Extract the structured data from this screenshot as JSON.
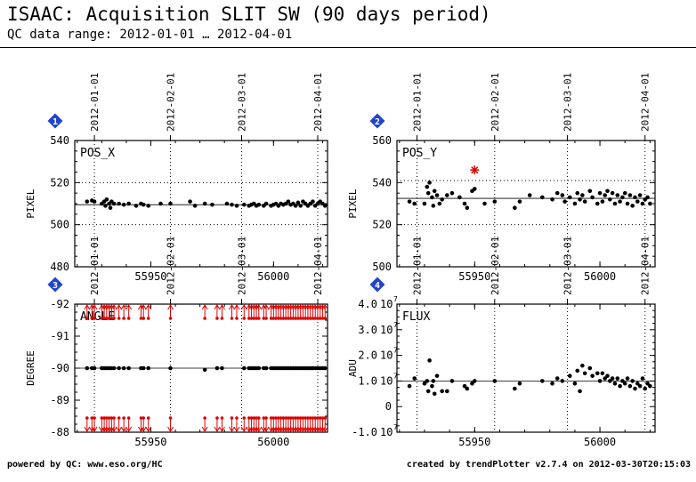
{
  "header": {
    "title": "ISAAC: Acquisition SLIT SW (90 days period)",
    "subtitle": "QC data range: 2012-01-01 … 2012-04-01"
  },
  "footer": {
    "left": "powered by QC: www.eso.org/HC",
    "right": "created by trendPlotter v2.7.4 on 2012-03-30T20:15:03"
  },
  "colors": {
    "axis": "#000000",
    "grid": "#000000",
    "points": "#000000",
    "outlier": "#dd0000",
    "badge": "#2244cc"
  },
  "chart_data": [
    {
      "type": "scatter",
      "badge": "1",
      "label": "POS_X",
      "ylabel": "PIXEL",
      "xlim": [
        55919,
        56022
      ],
      "ylim": [
        480,
        540
      ],
      "y_ticks": [
        {
          "v": 480,
          "t": "480"
        },
        {
          "v": 500,
          "t": "500"
        },
        {
          "v": 520,
          "t": "520"
        },
        {
          "v": 540,
          "t": "540"
        }
      ],
      "x_ticks": [
        {
          "v": 55950,
          "t": "55950"
        },
        {
          "v": 56000,
          "t": "56000"
        }
      ],
      "date_ticks": [
        {
          "v": 55927,
          "t": "2012-01-01"
        },
        {
          "v": 55958,
          "t": "2012-02-01"
        },
        {
          "v": 55987,
          "t": "2012-03-01"
        },
        {
          "v": 56018,
          "t": "2012-04-01"
        }
      ],
      "dotted_y": [
        500,
        520
      ],
      "ref_line": 509.5,
      "points": [
        [
          55924,
          511
        ],
        [
          55926,
          511.5
        ],
        [
          55927,
          511
        ],
        [
          55930,
          510
        ],
        [
          55931,
          511
        ],
        [
          55931.5,
          509
        ],
        [
          55932,
          512
        ],
        [
          55933,
          510
        ],
        [
          55933.5,
          508
        ],
        [
          55934,
          511
        ],
        [
          55935,
          510
        ],
        [
          55937,
          510
        ],
        [
          55939,
          509.5
        ],
        [
          55941,
          510
        ],
        [
          55944,
          509
        ],
        [
          55946,
          510
        ],
        [
          55947,
          509.5
        ],
        [
          55949,
          509
        ],
        [
          55954,
          510
        ],
        [
          55958,
          510
        ],
        [
          55966,
          511
        ],
        [
          55968,
          509
        ],
        [
          55972,
          510
        ],
        [
          55975,
          509.5
        ],
        [
          55981,
          510
        ],
        [
          55983,
          509.5
        ],
        [
          55985,
          509
        ],
        [
          55988,
          509.5
        ],
        [
          55990,
          509
        ],
        [
          55991,
          509.5
        ],
        [
          55992,
          510
        ],
        [
          55993,
          509
        ],
        [
          55994,
          509.5
        ],
        [
          55996,
          509
        ],
        [
          55997,
          510
        ],
        [
          55999,
          509
        ],
        [
          56000,
          509.5
        ],
        [
          56001,
          510
        ],
        [
          56002,
          509
        ],
        [
          56003,
          510
        ],
        [
          56004,
          509.5
        ],
        [
          56005,
          510
        ],
        [
          56006,
          511
        ],
        [
          56007,
          509.5
        ],
        [
          56008,
          510
        ],
        [
          56009,
          509
        ],
        [
          56010,
          510.5
        ],
        [
          56011,
          509
        ],
        [
          56012,
          511
        ],
        [
          56013,
          510
        ],
        [
          56014,
          509
        ],
        [
          56015,
          510
        ],
        [
          56016,
          511
        ],
        [
          56017,
          509
        ],
        [
          56018,
          510
        ],
        [
          56019,
          511
        ],
        [
          56020,
          510
        ],
        [
          56021,
          509
        ]
      ],
      "outliers": [],
      "arrows": []
    },
    {
      "type": "scatter",
      "badge": "2",
      "label": "POS_Y",
      "ylabel": "PIXEL",
      "xlim": [
        55919,
        56022
      ],
      "ylim": [
        500,
        560
      ],
      "y_ticks": [
        {
          "v": 500,
          "t": "500"
        },
        {
          "v": 520,
          "t": "520"
        },
        {
          "v": 540,
          "t": "540"
        },
        {
          "v": 560,
          "t": "560"
        }
      ],
      "x_ticks": [
        {
          "v": 55950,
          "t": "55950"
        },
        {
          "v": 56000,
          "t": "56000"
        }
      ],
      "date_ticks": [
        {
          "v": 55927,
          "t": "2012-01-01"
        },
        {
          "v": 55958,
          "t": "2012-02-01"
        },
        {
          "v": 55987,
          "t": "2012-03-01"
        },
        {
          "v": 56018,
          "t": "2012-04-01"
        }
      ],
      "dotted_y": [
        520,
        541
      ],
      "ref_line": 532.5,
      "points": [
        [
          55924,
          531
        ],
        [
          55926,
          530
        ],
        [
          55930,
          530
        ],
        [
          55931,
          538
        ],
        [
          55931.5,
          535
        ],
        [
          55932,
          540
        ],
        [
          55933,
          533
        ],
        [
          55933.5,
          529
        ],
        [
          55934,
          536
        ],
        [
          55935,
          534
        ],
        [
          55936,
          530
        ],
        [
          55937,
          532
        ],
        [
          55939,
          534
        ],
        [
          55941,
          535
        ],
        [
          55944,
          533
        ],
        [
          55946,
          530
        ],
        [
          55947,
          528
        ],
        [
          55949,
          536
        ],
        [
          55950,
          537
        ],
        [
          55954,
          530
        ],
        [
          55958,
          531
        ],
        [
          55966,
          528
        ],
        [
          55968,
          531
        ],
        [
          55972,
          534
        ],
        [
          55977,
          533
        ],
        [
          55981,
          532
        ],
        [
          55983,
          535
        ],
        [
          55985,
          534
        ],
        [
          55986,
          531
        ],
        [
          55988,
          533
        ],
        [
          55990,
          530
        ],
        [
          55991,
          535
        ],
        [
          55992,
          532
        ],
        [
          55993,
          534
        ],
        [
          55994,
          531
        ],
        [
          55996,
          536
        ],
        [
          55997,
          533
        ],
        [
          55999,
          530
        ],
        [
          56000,
          535
        ],
        [
          56001,
          531
        ],
        [
          56002,
          534
        ],
        [
          56003,
          536
        ],
        [
          56004,
          532
        ],
        [
          56005,
          535
        ],
        [
          56006,
          530
        ],
        [
          56007,
          534
        ],
        [
          56008,
          531
        ],
        [
          56009,
          533
        ],
        [
          56010,
          535
        ],
        [
          56011,
          530
        ],
        [
          56012,
          534
        ],
        [
          56013,
          529
        ],
        [
          56014,
          533
        ],
        [
          56015,
          531
        ],
        [
          56016,
          534
        ],
        [
          56017,
          530
        ],
        [
          56018,
          532
        ],
        [
          56019,
          533
        ],
        [
          56020,
          530
        ]
      ],
      "outliers": [
        [
          55950,
          546
        ]
      ],
      "arrows": []
    },
    {
      "type": "scatter",
      "badge": "3",
      "label": "ANGLE",
      "ylabel": "DEGREE",
      "xlim": [
        55919,
        56022
      ],
      "ylim": [
        -88,
        -92
      ],
      "y_ticks": [
        {
          "v": -92,
          "t": "-92"
        },
        {
          "v": -91,
          "t": "-91"
        },
        {
          "v": -90,
          "t": "-90"
        },
        {
          "v": -89,
          "t": "-89"
        },
        {
          "v": -88,
          "t": "-88"
        }
      ],
      "x_ticks": [
        {
          "v": 55950,
          "t": "55950"
        },
        {
          "v": 56000,
          "t": "56000"
        }
      ],
      "date_ticks": [
        {
          "v": 55927,
          "t": "2012-01-01"
        },
        {
          "v": 55958,
          "t": "2012-02-01"
        },
        {
          "v": 55987,
          "t": "2012-03-01"
        },
        {
          "v": 56018,
          "t": "2012-04-01"
        }
      ],
      "dotted_y": [],
      "ref_line": -90,
      "points": [
        [
          55924,
          -90
        ],
        [
          55926,
          -90
        ],
        [
          55927,
          -90
        ],
        [
          55930,
          -90
        ],
        [
          55931,
          -90
        ],
        [
          55932,
          -90
        ],
        [
          55933,
          -90
        ],
        [
          55934,
          -90
        ],
        [
          55935,
          -90
        ],
        [
          55937,
          -90
        ],
        [
          55939,
          -90
        ],
        [
          55941,
          -90
        ],
        [
          55946,
          -90
        ],
        [
          55947,
          -90
        ],
        [
          55949,
          -90
        ],
        [
          55958,
          -90
        ],
        [
          55972,
          -89.95
        ],
        [
          55977,
          -90
        ],
        [
          55979,
          -90
        ],
        [
          55988,
          -90
        ],
        [
          55990,
          -90
        ],
        [
          55991,
          -90
        ],
        [
          55992,
          -90
        ],
        [
          55993,
          -90
        ],
        [
          55994,
          -90
        ],
        [
          55996,
          -90
        ],
        [
          55997,
          -90
        ],
        [
          55999,
          -90
        ],
        [
          56000,
          -90
        ],
        [
          56001,
          -90
        ],
        [
          56002,
          -90
        ],
        [
          56003,
          -90
        ],
        [
          56004,
          -90
        ],
        [
          56005,
          -90
        ],
        [
          56006,
          -90
        ],
        [
          56007,
          -90
        ],
        [
          56008,
          -90
        ],
        [
          56009,
          -90
        ],
        [
          56010,
          -90
        ],
        [
          56011,
          -90
        ],
        [
          56012,
          -90
        ],
        [
          56013,
          -90
        ],
        [
          56014,
          -90
        ],
        [
          56015,
          -90
        ],
        [
          56016,
          -90
        ],
        [
          56017,
          -90
        ],
        [
          56018,
          -90
        ],
        [
          56019,
          -90
        ],
        [
          56020,
          -90
        ],
        [
          56021,
          -90
        ]
      ],
      "outliers": [],
      "arrows": [
        55924,
        55926,
        55927,
        55930,
        55931,
        55932,
        55933,
        55934,
        55935,
        55937,
        55939,
        55941,
        55946,
        55947,
        55949,
        55958,
        55972,
        55977,
        55979,
        55983,
        55985,
        55988,
        55990,
        55991,
        55992,
        55993,
        55994,
        55996,
        55997,
        55999,
        56000,
        56001,
        56002,
        56003,
        56004,
        56005,
        56006,
        56007,
        56008,
        56009,
        56010,
        56011,
        56012,
        56013,
        56014,
        56015,
        56016,
        56017,
        56018,
        56019,
        56020,
        56021
      ]
    },
    {
      "type": "scatter",
      "badge": "4",
      "label": "FLUX",
      "ylabel": "ADU",
      "xlim": [
        55919,
        56022
      ],
      "ylim": [
        -10000000.0,
        40000000.0
      ],
      "y_ticks": [
        {
          "v": 40000000.0,
          "t": "4.0",
          "exp": "7"
        },
        {
          "v": 30000000.0,
          "t": "3.0",
          "exp": "7"
        },
        {
          "v": 20000000.0,
          "t": "2.0",
          "exp": "7"
        },
        {
          "v": 10000000.0,
          "t": "1.0",
          "exp": "7"
        },
        {
          "v": 0,
          "t": "0"
        },
        {
          "v": -10000000.0,
          "t": "-1.0",
          "exp": "7"
        }
      ],
      "x_ticks": [
        {
          "v": 55950,
          "t": "55950"
        },
        {
          "v": 56000,
          "t": "56000"
        }
      ],
      "date_ticks": [
        {
          "v": 55927,
          "t": "2012-01-01"
        },
        {
          "v": 55958,
          "t": "2012-02-01"
        },
        {
          "v": 55987,
          "t": "2012-03-01"
        },
        {
          "v": 56018,
          "t": "2012-04-01"
        }
      ],
      "dotted_y": [],
      "ref_line": 10000000.0,
      "points": [
        [
          55924,
          8000000.0
        ],
        [
          55926,
          11000000.0
        ],
        [
          55930,
          9000000.0
        ],
        [
          55931,
          10000000.0
        ],
        [
          55931.5,
          6000000.0
        ],
        [
          55932,
          18000000.0
        ],
        [
          55933,
          8000000.0
        ],
        [
          55933.5,
          10000000.0
        ],
        [
          55934,
          5000000.0
        ],
        [
          55935,
          12000000.0
        ],
        [
          55937,
          6000000.0
        ],
        [
          55939,
          6000000.0
        ],
        [
          55941,
          10000000.0
        ],
        [
          55946,
          8000000.0
        ],
        [
          55947,
          7000000.0
        ],
        [
          55949,
          9000000.0
        ],
        [
          55950,
          10000000.0
        ],
        [
          55958,
          10000000.0
        ],
        [
          55966,
          7000000.0
        ],
        [
          55968,
          9000000.0
        ],
        [
          55977,
          10000000.0
        ],
        [
          55981,
          9000000.0
        ],
        [
          55983,
          11000000.0
        ],
        [
          55985,
          10000000.0
        ],
        [
          55988,
          12000000.0
        ],
        [
          55990,
          9000000.0
        ],
        [
          55991,
          14000000.0
        ],
        [
          55992,
          6000000.0
        ],
        [
          55993,
          16000000.0
        ],
        [
          55994,
          13000000.0
        ],
        [
          55996,
          15000000.0
        ],
        [
          55997,
          12000000.0
        ],
        [
          55999,
          13000000.0
        ],
        [
          56000,
          10000000.0
        ],
        [
          56001,
          13000000.0
        ],
        [
          56002,
          11000000.0
        ],
        [
          56003,
          12000000.0
        ],
        [
          56004,
          10000000.0
        ],
        [
          56005,
          11000000.0
        ],
        [
          56006,
          9000000.0
        ],
        [
          56007,
          11000000.0
        ],
        [
          56008,
          8000000.0
        ],
        [
          56009,
          10000000.0
        ],
        [
          56010,
          9000000.0
        ],
        [
          56011,
          11000000.0
        ],
        [
          56012,
          8000000.0
        ],
        [
          56013,
          10000000.0
        ],
        [
          56014,
          7000000.0
        ],
        [
          56015,
          9000000.0
        ],
        [
          56016,
          8000000.0
        ],
        [
          56017,
          11000000.0
        ],
        [
          56018,
          7000000.0
        ],
        [
          56019,
          9000000.0
        ],
        [
          56020,
          8000000.0
        ]
      ],
      "outliers": [],
      "arrows": []
    }
  ]
}
